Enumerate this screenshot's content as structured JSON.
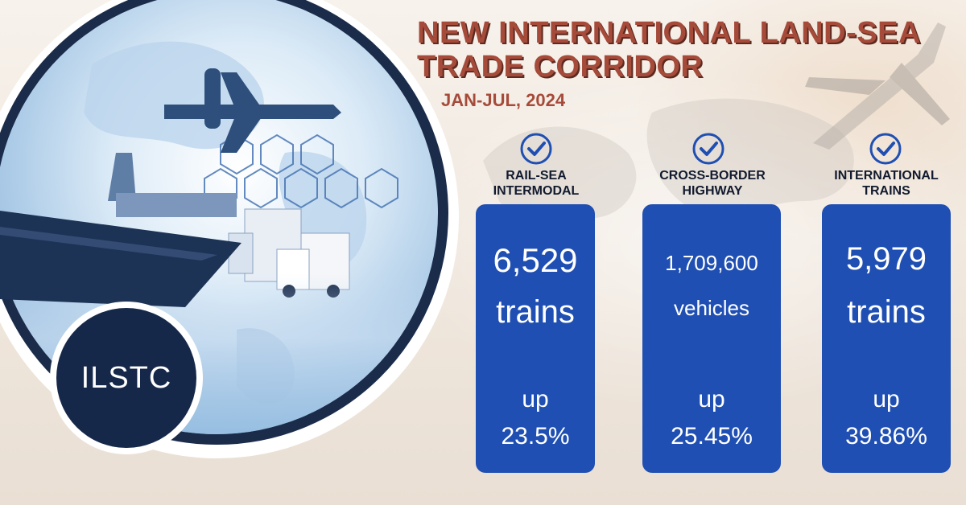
{
  "title": "NEW INTERNATIONAL LAND-SEA TRADE CORRIDOR",
  "subtitle": "JAN-JUL, 2024",
  "badge": "ILSTC",
  "colors": {
    "accent": "#a64b3a",
    "card": "#1f4fb2",
    "navy": "#16284a"
  },
  "stats": [
    {
      "label": "RAIL-SEA\nINTERMODAL",
      "value": "6,529",
      "unit": "trains",
      "up": "up",
      "change": "23.5%"
    },
    {
      "label": "CROSS-BORDER\nHIGHWAY",
      "value": "1,709,600",
      "unit": "vehicles",
      "up": "up",
      "change": "25.45%"
    },
    {
      "label": "INTERNATIONAL\nTRAINS",
      "value": "5,979",
      "unit": "trains",
      "up": "up",
      "change": "39.86%"
    }
  ]
}
